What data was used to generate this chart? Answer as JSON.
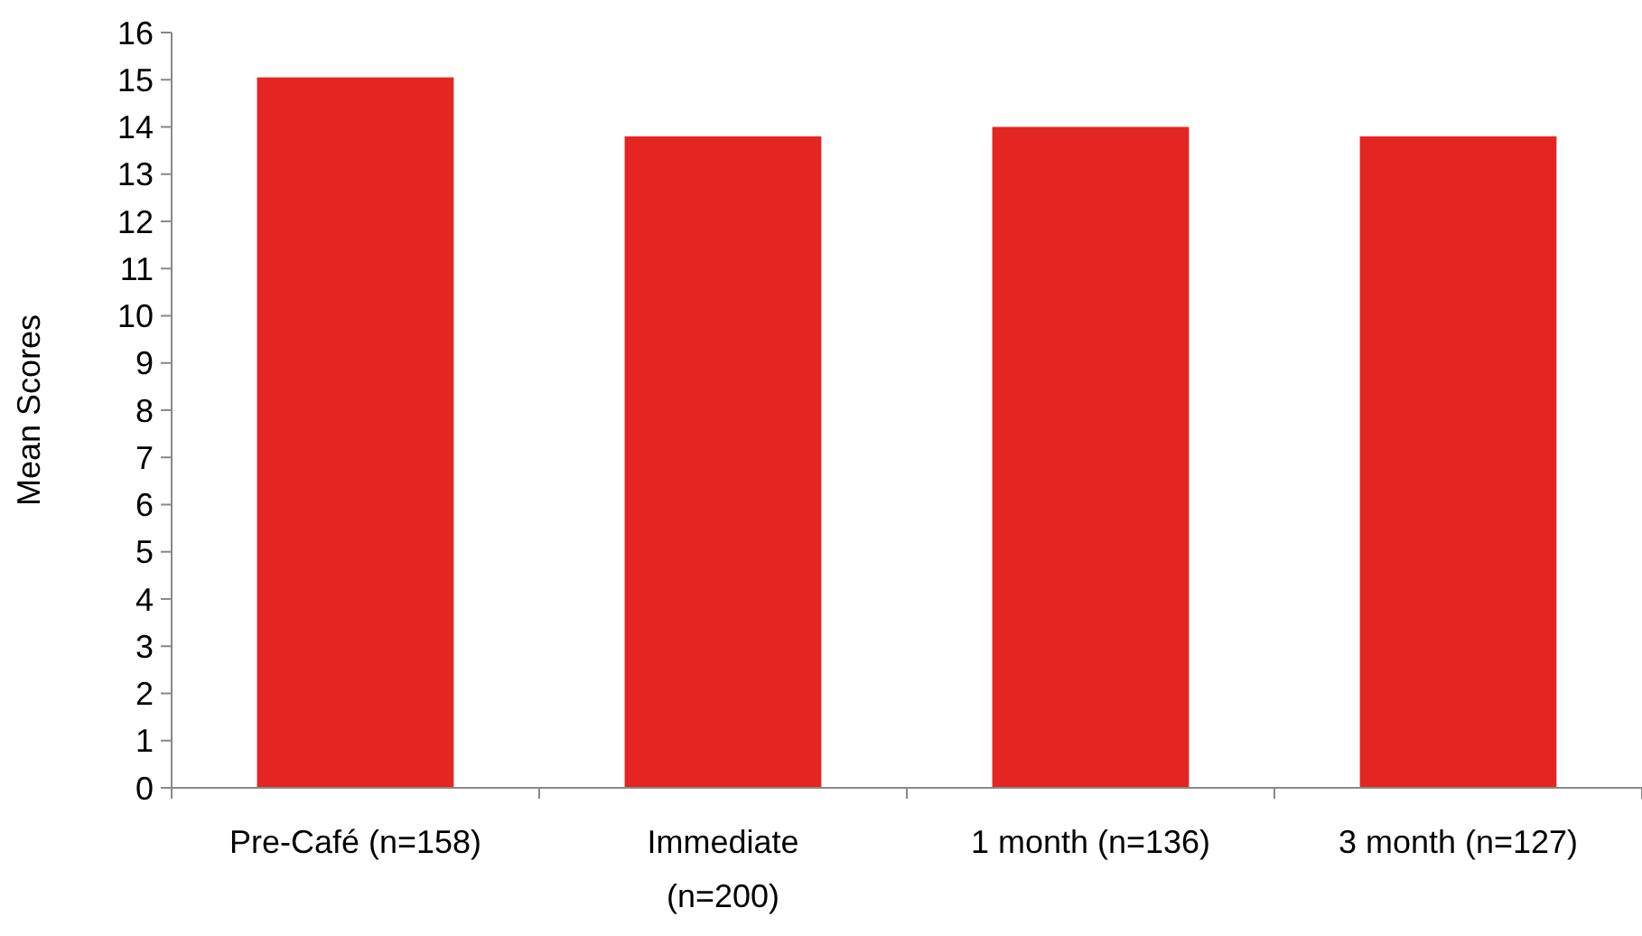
{
  "chart_data": {
    "type": "bar",
    "ylabel": "Mean Scores",
    "categories": [
      "Pre-Café (n=158)",
      "Immediate\n(n=200)",
      "1 month (n=136)",
      "3 month (n=127)"
    ],
    "values": [
      15.05,
      13.8,
      14.0,
      13.8
    ],
    "color": "#e52521",
    "ylim": [
      0,
      16
    ],
    "yticks": [
      0,
      1,
      2,
      3,
      4,
      5,
      6,
      7,
      8,
      9,
      10,
      11,
      12,
      13,
      14,
      15,
      16
    ],
    "grid": false
  }
}
